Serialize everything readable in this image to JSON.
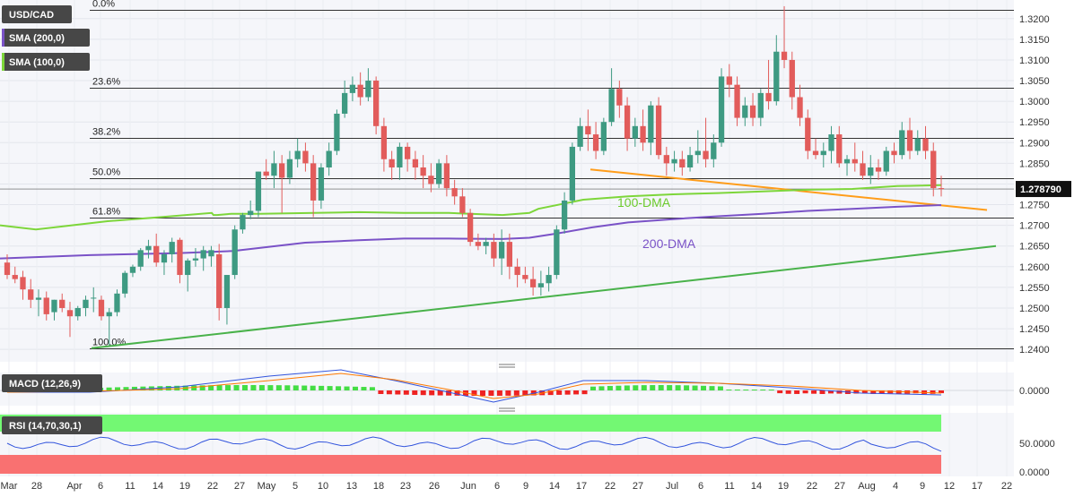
{
  "instrument": "USD/CAD",
  "indicators": {
    "sma200": "SMA (200,0)",
    "sma100": "SMA (100,0)",
    "macd": "MACD (12,26,9)",
    "rsi": "RSI (14,70,30,1)"
  },
  "colors": {
    "up": "#3e9a82",
    "down": "#e25c5b",
    "sma100": "#7dd63a",
    "sma200": "#7a52c7",
    "trendline": "#ff9d1a",
    "support": "#49b24a",
    "fib": "#333333",
    "rsi_overbought": "#73f873",
    "rsi_oversold": "#f97171",
    "rsi_line": "#3355dd",
    "macd_line": "#3355dd",
    "signal_line": "#ff7a00",
    "hist_pos": "#44dd44",
    "hist_neg": "#ee2222",
    "tag_bg": "#474747"
  },
  "last_price": "1.278790",
  "annotations": {
    "dma100": "100-DMA",
    "dma200": "200-DMA"
  },
  "fib_levels": [
    {
      "label": "0.0%",
      "price": 1.3221
    },
    {
      "label": "23.6%",
      "price": 1.3032
    },
    {
      "label": "38.2%",
      "price": 1.2911
    },
    {
      "label": "50.0%",
      "price": 1.2814
    },
    {
      "label": "61.8%",
      "price": 1.2718
    },
    {
      "label": "100.0%",
      "price": 1.2403
    }
  ],
  "y_ticks": [
    "1.2400",
    "1.2450",
    "1.2500",
    "1.2550",
    "1.2600",
    "1.2650",
    "1.2700",
    "1.2750",
    "1.2800",
    "1.2850",
    "1.2900",
    "1.2950",
    "1.3000",
    "1.3050",
    "1.3100",
    "1.3150",
    "1.3200"
  ],
  "macd_ticks": [
    "0.0000"
  ],
  "rsi_ticks": [
    "50.0000",
    "0.0000"
  ],
  "x_labels": [
    "Mar",
    "28",
    "Apr",
    "6",
    "11",
    "14",
    "19",
    "22",
    "27",
    "May",
    "5",
    "10",
    "13",
    "18",
    "23",
    "26",
    "Jun",
    "6",
    "9",
    "14",
    "17",
    "22",
    "27",
    "Jul",
    "6",
    "11",
    "14",
    "19",
    "22",
    "27",
    "Aug",
    "4",
    "9",
    "12",
    "17",
    "22"
  ],
  "chart_data": {
    "type": "candlestick",
    "title": "USD/CAD",
    "y_range": [
      1.237,
      1.3245
    ],
    "candles": [
      [
        1.261,
        1.263,
        1.257,
        1.258
      ],
      [
        1.258,
        1.26,
        1.256,
        1.257
      ],
      [
        1.2575,
        1.259,
        1.252,
        1.2545
      ],
      [
        1.2545,
        1.257,
        1.25,
        1.252
      ],
      [
        1.252,
        1.2545,
        1.248,
        1.2525
      ],
      [
        1.2525,
        1.254,
        1.247,
        1.2485
      ],
      [
        1.249,
        1.252,
        1.247,
        1.252
      ],
      [
        1.252,
        1.2535,
        1.249,
        1.25
      ],
      [
        1.2495,
        1.2515,
        1.243,
        1.248
      ],
      [
        1.248,
        1.2505,
        1.247,
        1.25
      ],
      [
        1.25,
        1.253,
        1.248,
        1.252
      ],
      [
        1.2525,
        1.255,
        1.249,
        1.2525
      ],
      [
        1.252,
        1.253,
        1.247,
        1.248
      ],
      [
        1.248,
        1.25,
        1.241,
        1.249
      ],
      [
        1.249,
        1.2545,
        1.248,
        1.2535
      ],
      [
        1.2535,
        1.259,
        1.2525,
        1.2585
      ],
      [
        1.2585,
        1.2605,
        1.2575,
        1.26
      ],
      [
        1.26,
        1.2645,
        1.259,
        1.264
      ],
      [
        1.264,
        1.2665,
        1.262,
        1.265
      ],
      [
        1.265,
        1.268,
        1.26,
        1.261
      ],
      [
        1.261,
        1.264,
        1.258,
        1.263
      ],
      [
        1.263,
        1.267,
        1.261,
        1.266
      ],
      [
        1.2665,
        1.267,
        1.256,
        1.258
      ],
      [
        1.258,
        1.262,
        1.254,
        1.2615
      ],
      [
        1.2615,
        1.2645,
        1.26,
        1.262
      ],
      [
        1.262,
        1.265,
        1.259,
        1.264
      ],
      [
        1.2625,
        1.265,
        1.26,
        1.264
      ],
      [
        1.263,
        1.2655,
        1.247,
        1.25
      ],
      [
        1.25,
        1.258,
        1.246,
        1.258
      ],
      [
        1.258,
        1.27,
        1.257,
        1.269
      ],
      [
        1.269,
        1.273,
        1.268,
        1.2725
      ],
      [
        1.2725,
        1.276,
        1.2715,
        1.2735
      ],
      [
        1.2735,
        1.283,
        1.272,
        1.283
      ],
      [
        1.283,
        1.286,
        1.281,
        1.282
      ],
      [
        1.282,
        1.288,
        1.279,
        1.285
      ],
      [
        1.285,
        1.287,
        1.273,
        1.2815
      ],
      [
        1.2815,
        1.288,
        1.28,
        1.286
      ],
      [
        1.286,
        1.291,
        1.284,
        1.288
      ],
      [
        1.288,
        1.29,
        1.283,
        1.285
      ],
      [
        1.285,
        1.287,
        1.272,
        1.276
      ],
      [
        1.276,
        1.285,
        1.274,
        1.284
      ],
      [
        1.284,
        1.29,
        1.282,
        1.288
      ],
      [
        1.288,
        1.298,
        1.287,
        1.297
      ],
      [
        1.297,
        1.305,
        1.296,
        1.302
      ],
      [
        1.302,
        1.306,
        1.3,
        1.304
      ],
      [
        1.304,
        1.307,
        1.299,
        1.301
      ],
      [
        1.301,
        1.308,
        1.3,
        1.305
      ],
      [
        1.305,
        1.306,
        1.292,
        1.294
      ],
      [
        1.294,
        1.296,
        1.283,
        1.286
      ],
      [
        1.286,
        1.288,
        1.281,
        1.284
      ],
      [
        1.284,
        1.29,
        1.281,
        1.289
      ],
      [
        1.289,
        1.29,
        1.283,
        1.286
      ],
      [
        1.286,
        1.288,
        1.281,
        1.284
      ],
      [
        1.284,
        1.287,
        1.279,
        1.282
      ],
      [
        1.282,
        1.285,
        1.278,
        1.28
      ],
      [
        1.28,
        1.286,
        1.279,
        1.285
      ],
      [
        1.285,
        1.287,
        1.277,
        1.279
      ],
      [
        1.279,
        1.281,
        1.275,
        1.277
      ],
      [
        1.277,
        1.279,
        1.272,
        1.273
      ],
      [
        1.273,
        1.274,
        1.265,
        1.266
      ],
      [
        1.266,
        1.268,
        1.264,
        1.265
      ],
      [
        1.265,
        1.267,
        1.263,
        1.266
      ],
      [
        1.266,
        1.268,
        1.26,
        1.262
      ],
      [
        1.262,
        1.269,
        1.258,
        1.266
      ],
      [
        1.266,
        1.268,
        1.257,
        1.26
      ],
      [
        1.26,
        1.262,
        1.255,
        1.258
      ],
      [
        1.258,
        1.26,
        1.256,
        1.257
      ],
      [
        1.257,
        1.26,
        1.253,
        1.255
      ],
      [
        1.255,
        1.259,
        1.253,
        1.256
      ],
      [
        1.256,
        1.26,
        1.254,
        1.258
      ],
      [
        1.258,
        1.27,
        1.257,
        1.269
      ],
      [
        1.269,
        1.278,
        1.268,
        1.276
      ],
      [
        1.276,
        1.29,
        1.275,
        1.289
      ],
      [
        1.289,
        1.296,
        1.288,
        1.294
      ],
      [
        1.294,
        1.298,
        1.288,
        1.292
      ],
      [
        1.292,
        1.295,
        1.286,
        1.288
      ],
      [
        1.288,
        1.296,
        1.287,
        1.295
      ],
      [
        1.295,
        1.308,
        1.294,
        1.303
      ],
      [
        1.303,
        1.305,
        1.296,
        1.299
      ],
      [
        1.299,
        1.301,
        1.288,
        1.291
      ],
      [
        1.291,
        1.296,
        1.289,
        1.294
      ],
      [
        1.294,
        1.298,
        1.288,
        1.29
      ],
      [
        1.29,
        1.3,
        1.287,
        1.299
      ],
      [
        1.299,
        1.301,
        1.286,
        1.287
      ],
      [
        1.287,
        1.289,
        1.282,
        1.285
      ],
      [
        1.285,
        1.288,
        1.283,
        1.286
      ],
      [
        1.286,
        1.288,
        1.282,
        1.284
      ],
      [
        1.284,
        1.289,
        1.283,
        1.287
      ],
      [
        1.287,
        1.293,
        1.285,
        1.288
      ],
      [
        1.288,
        1.296,
        1.284,
        1.286
      ],
      [
        1.286,
        1.292,
        1.284,
        1.29
      ],
      [
        1.29,
        1.308,
        1.289,
        1.306
      ],
      [
        1.306,
        1.309,
        1.301,
        1.304
      ],
      [
        1.304,
        1.306,
        1.294,
        1.296
      ],
      [
        1.296,
        1.301,
        1.294,
        1.299
      ],
      [
        1.299,
        1.302,
        1.294,
        1.296
      ],
      [
        1.296,
        1.303,
        1.294,
        1.302
      ],
      [
        1.302,
        1.31,
        1.298,
        1.3
      ],
      [
        1.3,
        1.316,
        1.299,
        1.312
      ],
      [
        1.312,
        1.323,
        1.308,
        1.31
      ],
      [
        1.31,
        1.312,
        1.298,
        1.301
      ],
      [
        1.301,
        1.304,
        1.294,
        1.296
      ],
      [
        1.296,
        1.298,
        1.286,
        1.288
      ],
      [
        1.288,
        1.291,
        1.286,
        1.287
      ],
      [
        1.287,
        1.29,
        1.284,
        1.288
      ],
      [
        1.288,
        1.294,
        1.285,
        1.292
      ],
      [
        1.292,
        1.294,
        1.284,
        1.285
      ],
      [
        1.285,
        1.287,
        1.282,
        1.286
      ],
      [
        1.286,
        1.29,
        1.283,
        1.285
      ],
      [
        1.285,
        1.288,
        1.281,
        1.282
      ],
      [
        1.282,
        1.287,
        1.28,
        1.284
      ],
      [
        1.284,
        1.286,
        1.281,
        1.283
      ],
      [
        1.283,
        1.289,
        1.282,
        1.288
      ],
      [
        1.288,
        1.29,
        1.285,
        1.287
      ],
      [
        1.287,
        1.295,
        1.286,
        1.293
      ],
      [
        1.293,
        1.296,
        1.286,
        1.288
      ],
      [
        1.288,
        1.293,
        1.287,
        1.291
      ],
      [
        1.291,
        1.294,
        1.286,
        1.288
      ],
      [
        1.288,
        1.29,
        1.277,
        1.279
      ],
      [
        1.279,
        1.282,
        1.277,
        1.2788
      ]
    ],
    "sma100": [
      [
        0,
        1.27
      ],
      [
        40,
        1.269
      ],
      [
        80,
        1.27
      ],
      [
        120,
        1.271
      ],
      [
        180,
        1.272
      ],
      [
        236,
        1.273
      ],
      [
        238,
        1.2725
      ],
      [
        242,
        1.2725
      ],
      [
        258,
        1.2728
      ],
      [
        290,
        1.2728
      ],
      [
        350,
        1.273
      ],
      [
        400,
        1.2732
      ],
      [
        450,
        1.273
      ],
      [
        500,
        1.273
      ],
      [
        560,
        1.2725
      ],
      [
        590,
        1.273
      ],
      [
        600,
        1.274
      ],
      [
        650,
        1.2762
      ],
      [
        700,
        1.277
      ],
      [
        750,
        1.2775
      ],
      [
        800,
        1.2778
      ],
      [
        850,
        1.2782
      ],
      [
        900,
        1.2786
      ],
      [
        950,
        1.2788
      ],
      [
        1000,
        1.2795
      ],
      [
        1049,
        1.2797
      ]
    ],
    "sma200": [
      [
        0,
        1.262
      ],
      [
        100,
        1.2628
      ],
      [
        200,
        1.2633
      ],
      [
        260,
        1.2638
      ],
      [
        300,
        1.2648
      ],
      [
        340,
        1.2658
      ],
      [
        400,
        1.2664
      ],
      [
        450,
        1.2668
      ],
      [
        500,
        1.2668
      ],
      [
        560,
        1.2667
      ],
      [
        590,
        1.267
      ],
      [
        620,
        1.268
      ],
      [
        660,
        1.2695
      ],
      [
        700,
        1.2707
      ],
      [
        750,
        1.2715
      ],
      [
        800,
        1.2722
      ],
      [
        850,
        1.2728
      ],
      [
        900,
        1.2735
      ],
      [
        950,
        1.274
      ],
      [
        1000,
        1.2745
      ],
      [
        1049,
        1.2749
      ]
    ],
    "x_axis_labels": [
      "Mar",
      "28",
      "Apr",
      "6",
      "11",
      "14",
      "19",
      "22",
      "27",
      "May",
      "5",
      "10",
      "13",
      "18",
      "23",
      "26",
      "Jun",
      "6",
      "9",
      "14",
      "17",
      "22",
      "27",
      "Jul",
      "6",
      "11",
      "14",
      "19",
      "22",
      "27",
      "Aug",
      "4",
      "9",
      "12",
      "17",
      "22"
    ]
  }
}
